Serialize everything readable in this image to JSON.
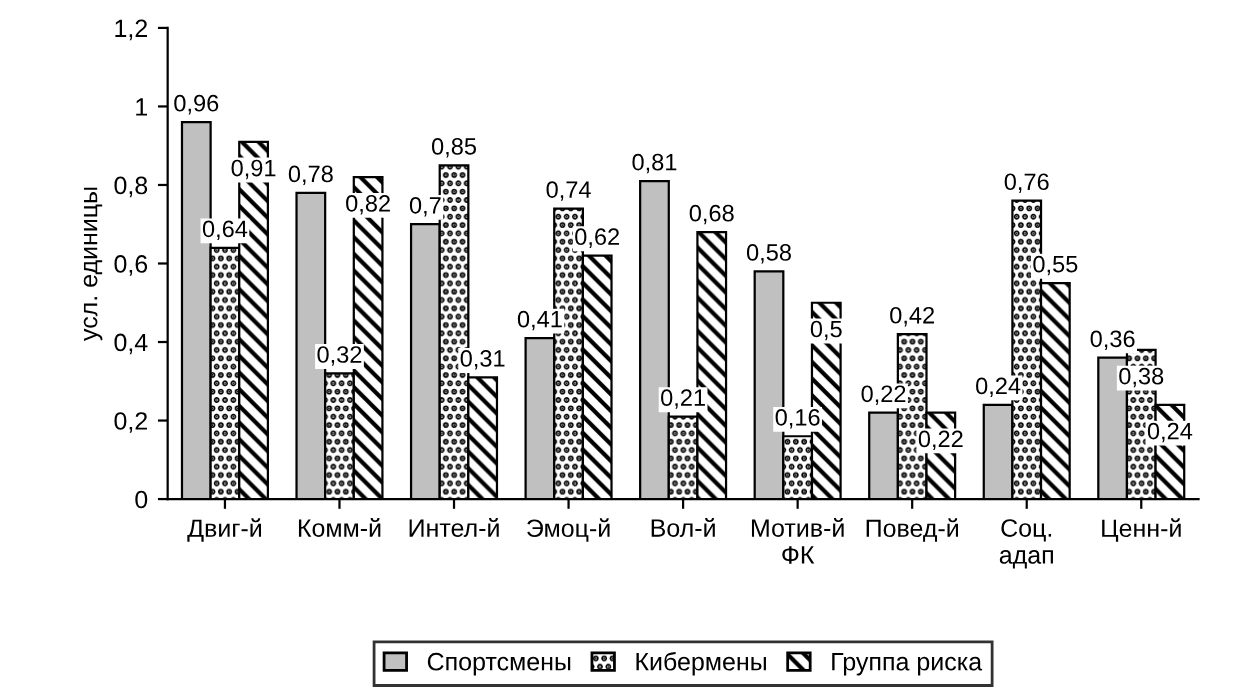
{
  "chart_data": {
    "type": "bar",
    "ylabel": "усл. единицы",
    "categories": [
      "Двиг-й",
      "Комм-й",
      "Интел-й",
      "Эмоц-й",
      "Вол-й",
      "Мотив-й\nФК",
      "Повед-й",
      "Соц.\nадап",
      "Ценн-й"
    ],
    "series": [
      {
        "name": "Спортсмены",
        "color": "#c0c0c0",
        "values": [
          0.96,
          0.78,
          0.7,
          0.41,
          0.81,
          0.58,
          0.22,
          0.24,
          0.36
        ],
        "value_labels": [
          "0,96",
          "0,78",
          "0,7",
          "0,41",
          "0,81",
          "0,58",
          "0,22",
          "0,24",
          "0,36"
        ]
      },
      {
        "name": "Кибермены",
        "color": "#000000",
        "values": [
          0.64,
          0.32,
          0.85,
          0.74,
          0.21,
          0.16,
          0.42,
          0.76,
          0.38
        ],
        "value_labels": [
          "0,64",
          "0,32",
          "0,85",
          "0,74",
          "0,21",
          "0,16",
          "0,42",
          "0,76",
          "0,38"
        ]
      },
      {
        "name": "Группа риска",
        "color": "#000000",
        "values": [
          0.91,
          0.82,
          0.31,
          0.62,
          0.68,
          0.5,
          0.22,
          0.55,
          0.24
        ],
        "value_labels": [
          "0,91",
          "0,82",
          "0,31",
          "0,62",
          "0,68",
          "0,5",
          "0,22",
          "0,55",
          "0,24"
        ]
      }
    ],
    "ylim": [
      0,
      1.2
    ],
    "yticks": [
      0,
      {
        "value": 0.2,
        "label": "0,2"
      },
      {
        "value": 0.4,
        "label": "0,4"
      },
      {
        "value": 0.6,
        "label": "0,6"
      },
      {
        "value": 0.8,
        "label": "0,8"
      },
      1,
      {
        "value": 1.2,
        "label": "1,2"
      }
    ],
    "grid": false,
    "legend": "bottom"
  }
}
